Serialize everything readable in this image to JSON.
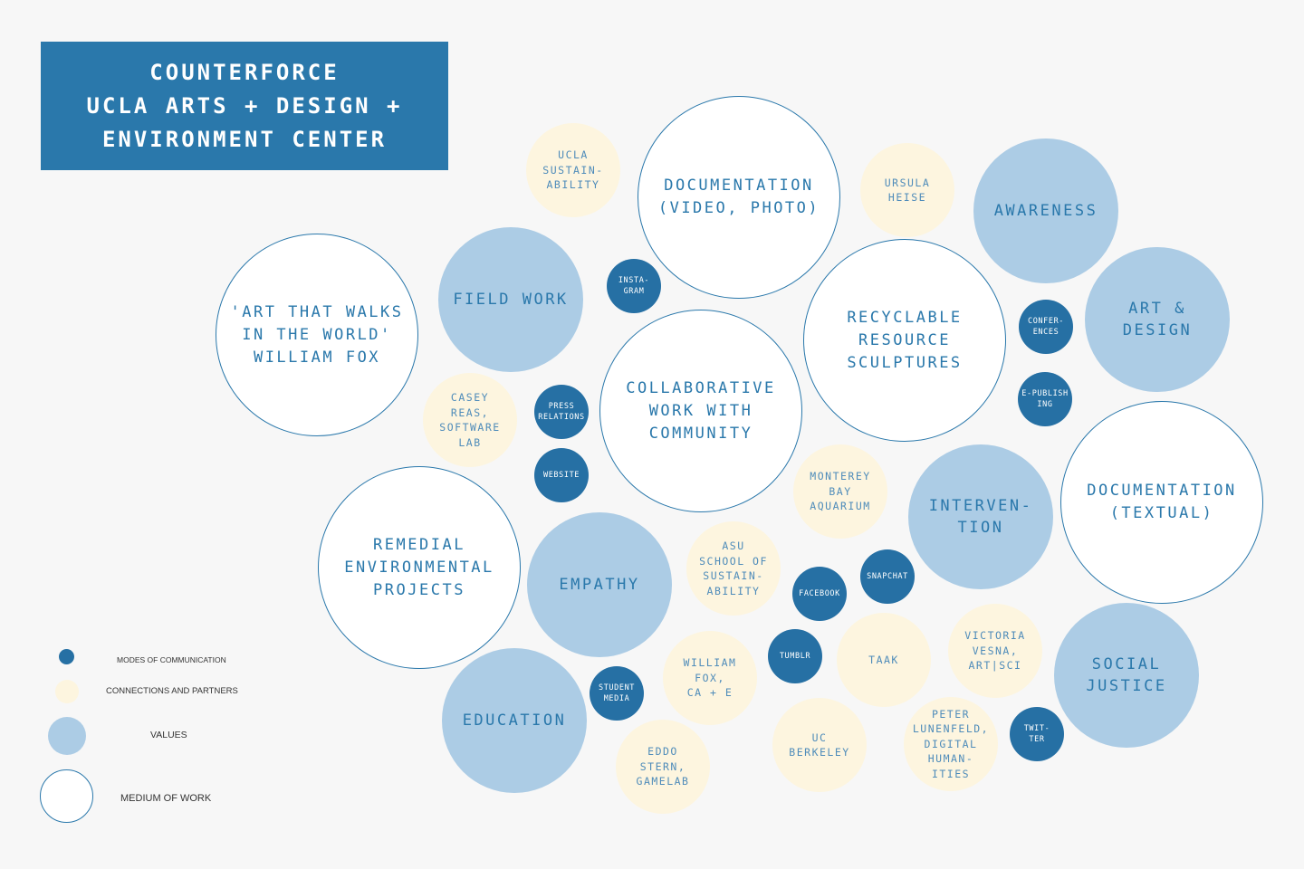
{
  "title": {
    "lines": [
      "COUNTERFORCE",
      "UCLA ARTS + DESIGN +",
      "ENVIRONMENT CENTER"
    ]
  },
  "colors": {
    "dark_blue": "#2a78ab",
    "light_blue": "#accce5",
    "cream": "#fdf5df",
    "white": "#ffffff",
    "background": "#f7f7f7"
  },
  "legend": {
    "modes_of_communication": "MODES OF COMMUNICATION",
    "connections_and_partners": "CONNECTIONS AND PARTNERS",
    "values": "VALUES",
    "medium_of_work": "MEDIUM OF WORK"
  },
  "bubbles": {
    "art_that_walks": "'ART THAT WALKS\nIN THE WORLD'\nWILLIAM FOX",
    "field_work": "FIELD WORK",
    "ucla_sustainability": "UCLA\nSUSTAIN-\nABILITY",
    "instagram": "INSTA-\nGRAM",
    "documentation_video": "DOCUMENTATION\n(VIDEO, PHOTO)",
    "ursula_heise": "URSULA\nHEISE",
    "awareness": "AWARENESS",
    "art_and_design": "ART &\nDESIGN",
    "conferences": "CONFER-\nENCES",
    "recyclable": "RECYCLABLE\nRESOURCE\nSCULPTURES",
    "e_publishing": "E-PUBLISH\nING",
    "collaborative": "COLLABORATIVE\nWORK WITH\nCOMMUNITY",
    "casey_reas": "CASEY\nREAS,\nSOFTWARE\nLAB",
    "press_relations": "PRESS\nRELATIONS",
    "website": "WEBSITE",
    "documentation_textual": "DOCUMENTATION\n(TEXTUAL)",
    "intervention": "INTERVEN-\nTION",
    "monterey": "MONTEREY\nBAY\nAQUARIUM",
    "remedial": "REMEDIAL\nENVIRONMENTAL\nPROJECTS",
    "empathy": "EMPATHY",
    "asu": "ASU\nSCHOOL OF\nSUSTAIN-\nABILITY",
    "facebook": "FACEBOOK",
    "snapchat": "SNAPCHAT",
    "social_justice": "SOCIAL\nJUSTICE",
    "victoria_vesna": "VICTORIA\nVESNA,\nART|SCI",
    "taak": "TAAK",
    "tumblr": "TUMBLR",
    "william_fox": "WILLIAM\nFOX,\nCA + E",
    "education": "EDUCATION",
    "student_media": "STUDENT\nMEDIA",
    "eddo_stern": "EDDO\nSTERN,\nGAMELAB",
    "uc_berkeley": "UC\nBERKELEY",
    "peter_lunenfeld": "PETER\nLUNENFELD,\nDIGITAL\nHUMAN-\nITIES",
    "twitter": "TWIT-\nTER"
  }
}
